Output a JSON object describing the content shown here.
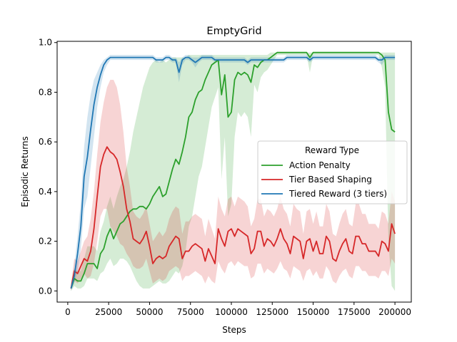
{
  "chart_data": {
    "type": "line",
    "title": "EmptyGrid",
    "xlabel": "Steps",
    "ylabel": "Episodic Returns",
    "xlim": [
      -6500,
      210000
    ],
    "ylim": [
      -0.045,
      1.005
    ],
    "xticks": [
      0,
      25000,
      50000,
      75000,
      100000,
      125000,
      150000,
      175000,
      200000
    ],
    "xtick_labels": [
      "0",
      "25000",
      "50000",
      "75000",
      "100000",
      "125000",
      "150000",
      "175000",
      "200000"
    ],
    "yticks": [
      0.0,
      0.2,
      0.4,
      0.6,
      0.8,
      1.0
    ],
    "ytick_labels": [
      "0.0",
      "0.2",
      "0.4",
      "0.6",
      "0.8",
      "1.0"
    ],
    "grid": false,
    "legend": {
      "title": "Reward Type",
      "placement": "center-right",
      "entries": [
        "Action Penalty",
        "Tier Based Shaping",
        "Tiered Reward (3 tiers)"
      ]
    },
    "x": [
      2000,
      4000,
      6000,
      8000,
      10000,
      12000,
      14000,
      16000,
      18000,
      20000,
      22000,
      24000,
      26000,
      28000,
      30000,
      32000,
      34000,
      36000,
      38000,
      40000,
      42000,
      44000,
      46000,
      48000,
      50000,
      52000,
      54000,
      56000,
      58000,
      60000,
      62000,
      64000,
      66000,
      68000,
      70000,
      72000,
      74000,
      76000,
      78000,
      80000,
      82000,
      84000,
      86000,
      88000,
      90000,
      92000,
      94000,
      96000,
      98000,
      100000,
      102000,
      104000,
      106000,
      108000,
      110000,
      112000,
      114000,
      116000,
      118000,
      120000,
      122000,
      124000,
      126000,
      128000,
      130000,
      132000,
      134000,
      136000,
      138000,
      140000,
      142000,
      144000,
      146000,
      148000,
      150000,
      152000,
      154000,
      156000,
      158000,
      160000,
      162000,
      164000,
      166000,
      168000,
      170000,
      172000,
      174000,
      176000,
      178000,
      180000,
      182000,
      184000,
      186000,
      188000,
      190000,
      192000,
      194000,
      196000,
      198000,
      200000
    ],
    "series": [
      {
        "name": "Action Penalty",
        "color": "#2ca02c",
        "mean": [
          0.01,
          0.05,
          0.04,
          0.04,
          0.07,
          0.11,
          0.11,
          0.11,
          0.09,
          0.15,
          0.17,
          0.22,
          0.25,
          0.21,
          0.24,
          0.27,
          0.28,
          0.3,
          0.32,
          0.33,
          0.33,
          0.34,
          0.34,
          0.33,
          0.35,
          0.38,
          0.4,
          0.42,
          0.38,
          0.39,
          0.44,
          0.49,
          0.53,
          0.51,
          0.56,
          0.62,
          0.7,
          0.72,
          0.77,
          0.8,
          0.81,
          0.85,
          0.88,
          0.91,
          0.92,
          0.93,
          0.79,
          0.87,
          0.7,
          0.72,
          0.85,
          0.88,
          0.87,
          0.88,
          0.87,
          0.84,
          0.91,
          0.9,
          0.92,
          0.93,
          0.93,
          0.94,
          0.95,
          0.96,
          0.96,
          0.96,
          0.96,
          0.96,
          0.96,
          0.96,
          0.96,
          0.96,
          0.96,
          0.94,
          0.96,
          0.96,
          0.96,
          0.96,
          0.96,
          0.96,
          0.96,
          0.96,
          0.96,
          0.96,
          0.96,
          0.96,
          0.96,
          0.96,
          0.96,
          0.96,
          0.96,
          0.96,
          0.96,
          0.96,
          0.96,
          0.95,
          0.93,
          0.72,
          0.65,
          0.64
        ],
        "upper": [
          0.03,
          0.09,
          0.08,
          0.08,
          0.13,
          0.18,
          0.18,
          0.18,
          0.16,
          0.24,
          0.28,
          0.34,
          0.38,
          0.33,
          0.38,
          0.42,
          0.45,
          0.5,
          0.56,
          0.64,
          0.7,
          0.76,
          0.82,
          0.86,
          0.9,
          0.92,
          0.93,
          0.92,
          0.93,
          0.92,
          0.93,
          0.94,
          0.94,
          0.94,
          0.94,
          0.94,
          0.95,
          0.95,
          0.95,
          0.95,
          0.95,
          0.95,
          0.95,
          0.95,
          0.95,
          0.95,
          0.95,
          0.95,
          0.95,
          0.95,
          0.95,
          0.95,
          0.95,
          0.95,
          0.95,
          0.95,
          0.95,
          0.95,
          0.95,
          0.95,
          0.95,
          0.96,
          0.96,
          0.96,
          0.96,
          0.96,
          0.96,
          0.96,
          0.96,
          0.96,
          0.96,
          0.96,
          0.96,
          0.96,
          0.96,
          0.96,
          0.96,
          0.96,
          0.96,
          0.96,
          0.96,
          0.96,
          0.96,
          0.96,
          0.96,
          0.96,
          0.96,
          0.96,
          0.96,
          0.96,
          0.96,
          0.96,
          0.96,
          0.96,
          0.96,
          0.96,
          0.96,
          0.96,
          0.96,
          0.96
        ],
        "lower": [
          0.0,
          0.02,
          0.01,
          0.01,
          0.02,
          0.05,
          0.05,
          0.05,
          0.04,
          0.07,
          0.08,
          0.11,
          0.13,
          0.1,
          0.11,
          0.13,
          0.13,
          0.12,
          0.1,
          0.07,
          0.04,
          0.02,
          0.01,
          0.01,
          0.01,
          0.02,
          0.03,
          0.04,
          0.03,
          0.03,
          0.04,
          0.06,
          0.08,
          0.07,
          0.1,
          0.16,
          0.26,
          0.3,
          0.38,
          0.46,
          0.5,
          0.58,
          0.66,
          0.74,
          0.78,
          0.82,
          0.45,
          0.62,
          0.3,
          0.35,
          0.62,
          0.72,
          0.7,
          0.72,
          0.7,
          0.62,
          0.83,
          0.8,
          0.86,
          0.88,
          0.89,
          0.91,
          0.93,
          0.95,
          0.95,
          0.95,
          0.95,
          0.95,
          0.95,
          0.95,
          0.95,
          0.95,
          0.95,
          0.88,
          0.95,
          0.95,
          0.95,
          0.95,
          0.95,
          0.95,
          0.95,
          0.95,
          0.95,
          0.95,
          0.95,
          0.95,
          0.95,
          0.95,
          0.95,
          0.95,
          0.95,
          0.95,
          0.95,
          0.95,
          0.95,
          0.9,
          0.82,
          0.2,
          0.02,
          0.0
        ]
      },
      {
        "name": "Tier Based Shaping",
        "color": "#d62728",
        "mean": [
          0.01,
          0.08,
          0.07,
          0.1,
          0.13,
          0.12,
          0.16,
          0.25,
          0.38,
          0.5,
          0.55,
          0.58,
          0.56,
          0.55,
          0.53,
          0.48,
          0.42,
          0.33,
          0.28,
          0.21,
          0.2,
          0.19,
          0.21,
          0.24,
          0.18,
          0.11,
          0.13,
          0.14,
          0.13,
          0.14,
          0.18,
          0.2,
          0.22,
          0.21,
          0.13,
          0.16,
          0.16,
          0.18,
          0.19,
          0.18,
          0.17,
          0.12,
          0.17,
          0.14,
          0.11,
          0.25,
          0.21,
          0.18,
          0.24,
          0.25,
          0.22,
          0.25,
          0.24,
          0.23,
          0.22,
          0.15,
          0.17,
          0.24,
          0.24,
          0.18,
          0.21,
          0.2,
          0.18,
          0.21,
          0.25,
          0.21,
          0.19,
          0.15,
          0.22,
          0.21,
          0.2,
          0.13,
          0.2,
          0.21,
          0.16,
          0.2,
          0.15,
          0.15,
          0.22,
          0.2,
          0.13,
          0.12,
          0.16,
          0.19,
          0.21,
          0.16,
          0.15,
          0.22,
          0.22,
          0.19,
          0.19,
          0.16,
          0.16,
          0.16,
          0.14,
          0.2,
          0.19,
          0.16,
          0.27,
          0.23
        ],
        "upper": [
          0.03,
          0.13,
          0.12,
          0.16,
          0.2,
          0.22,
          0.29,
          0.4,
          0.55,
          0.68,
          0.76,
          0.82,
          0.85,
          0.85,
          0.82,
          0.75,
          0.64,
          0.5,
          0.42,
          0.32,
          0.3,
          0.29,
          0.31,
          0.34,
          0.27,
          0.2,
          0.22,
          0.24,
          0.22,
          0.24,
          0.29,
          0.32,
          0.34,
          0.33,
          0.23,
          0.28,
          0.28,
          0.3,
          0.31,
          0.3,
          0.29,
          0.22,
          0.29,
          0.25,
          0.21,
          0.38,
          0.33,
          0.3,
          0.37,
          0.38,
          0.34,
          0.38,
          0.37,
          0.36,
          0.34,
          0.26,
          0.29,
          0.37,
          0.37,
          0.3,
          0.33,
          0.32,
          0.3,
          0.33,
          0.38,
          0.33,
          0.31,
          0.26,
          0.35,
          0.33,
          0.32,
          0.23,
          0.32,
          0.33,
          0.27,
          0.32,
          0.26,
          0.26,
          0.35,
          0.32,
          0.23,
          0.22,
          0.27,
          0.31,
          0.33,
          0.27,
          0.26,
          0.35,
          0.35,
          0.31,
          0.31,
          0.27,
          0.27,
          0.27,
          0.25,
          0.32,
          0.31,
          0.27,
          0.4,
          0.36
        ],
        "lower": [
          0.0,
          0.04,
          0.03,
          0.05,
          0.07,
          0.05,
          0.06,
          0.11,
          0.2,
          0.3,
          0.33,
          0.33,
          0.26,
          0.24,
          0.22,
          0.19,
          0.18,
          0.15,
          0.13,
          0.1,
          0.09,
          0.09,
          0.1,
          0.13,
          0.08,
          0.03,
          0.04,
          0.05,
          0.04,
          0.05,
          0.08,
          0.09,
          0.1,
          0.09,
          0.04,
          0.06,
          0.06,
          0.07,
          0.08,
          0.07,
          0.06,
          0.03,
          0.06,
          0.04,
          0.03,
          0.12,
          0.09,
          0.07,
          0.11,
          0.12,
          0.1,
          0.12,
          0.11,
          0.1,
          0.1,
          0.05,
          0.06,
          0.11,
          0.11,
          0.07,
          0.09,
          0.08,
          0.07,
          0.09,
          0.12,
          0.09,
          0.08,
          0.05,
          0.1,
          0.09,
          0.08,
          0.04,
          0.08,
          0.09,
          0.06,
          0.08,
          0.05,
          0.05,
          0.1,
          0.08,
          0.04,
          0.03,
          0.06,
          0.08,
          0.09,
          0.06,
          0.05,
          0.1,
          0.1,
          0.08,
          0.08,
          0.06,
          0.06,
          0.06,
          0.05,
          0.08,
          0.08,
          0.06,
          0.13,
          0.11
        ]
      },
      {
        "name": "Tiered Reward (3 tiers)",
        "color": "#1f77b4",
        "mean": [
          0.01,
          0.06,
          0.15,
          0.26,
          0.46,
          0.54,
          0.65,
          0.75,
          0.82,
          0.87,
          0.91,
          0.93,
          0.94,
          0.94,
          0.94,
          0.94,
          0.94,
          0.94,
          0.94,
          0.94,
          0.94,
          0.94,
          0.94,
          0.94,
          0.94,
          0.94,
          0.93,
          0.93,
          0.93,
          0.94,
          0.94,
          0.93,
          0.93,
          0.88,
          0.93,
          0.94,
          0.94,
          0.93,
          0.92,
          0.93,
          0.94,
          0.94,
          0.94,
          0.94,
          0.93,
          0.93,
          0.93,
          0.93,
          0.93,
          0.93,
          0.93,
          0.93,
          0.93,
          0.93,
          0.92,
          0.93,
          0.93,
          0.93,
          0.93,
          0.93,
          0.93,
          0.93,
          0.93,
          0.93,
          0.93,
          0.93,
          0.94,
          0.94,
          0.94,
          0.94,
          0.94,
          0.94,
          0.94,
          0.93,
          0.94,
          0.94,
          0.94,
          0.94,
          0.94,
          0.94,
          0.94,
          0.94,
          0.94,
          0.94,
          0.94,
          0.94,
          0.94,
          0.94,
          0.94,
          0.94,
          0.94,
          0.94,
          0.94,
          0.94,
          0.93,
          0.93,
          0.94,
          0.94,
          0.94,
          0.94
        ],
        "upper": [
          0.02,
          0.1,
          0.22,
          0.36,
          0.58,
          0.7,
          0.79,
          0.85,
          0.88,
          0.91,
          0.93,
          0.94,
          0.95,
          0.95,
          0.95,
          0.95,
          0.95,
          0.95,
          0.95,
          0.95,
          0.95,
          0.95,
          0.95,
          0.95,
          0.95,
          0.95,
          0.94,
          0.94,
          0.94,
          0.95,
          0.95,
          0.94,
          0.94,
          0.92,
          0.94,
          0.95,
          0.95,
          0.94,
          0.94,
          0.94,
          0.95,
          0.95,
          0.95,
          0.95,
          0.94,
          0.94,
          0.94,
          0.94,
          0.94,
          0.94,
          0.94,
          0.94,
          0.94,
          0.94,
          0.93,
          0.94,
          0.94,
          0.94,
          0.94,
          0.94,
          0.94,
          0.94,
          0.94,
          0.94,
          0.94,
          0.94,
          0.95,
          0.95,
          0.95,
          0.95,
          0.95,
          0.95,
          0.95,
          0.94,
          0.95,
          0.95,
          0.95,
          0.95,
          0.95,
          0.95,
          0.95,
          0.95,
          0.95,
          0.95,
          0.95,
          0.95,
          0.95,
          0.95,
          0.95,
          0.95,
          0.95,
          0.95,
          0.95,
          0.95,
          0.94,
          0.94,
          0.95,
          0.95,
          0.95,
          0.95
        ],
        "lower": [
          0.0,
          0.03,
          0.08,
          0.17,
          0.33,
          0.38,
          0.5,
          0.62,
          0.74,
          0.82,
          0.88,
          0.91,
          0.93,
          0.93,
          0.93,
          0.93,
          0.93,
          0.93,
          0.93,
          0.93,
          0.93,
          0.93,
          0.93,
          0.93,
          0.93,
          0.93,
          0.92,
          0.92,
          0.92,
          0.93,
          0.93,
          0.92,
          0.92,
          0.84,
          0.91,
          0.93,
          0.93,
          0.92,
          0.9,
          0.92,
          0.93,
          0.93,
          0.93,
          0.93,
          0.92,
          0.92,
          0.92,
          0.92,
          0.92,
          0.92,
          0.92,
          0.92,
          0.92,
          0.92,
          0.91,
          0.92,
          0.92,
          0.92,
          0.92,
          0.92,
          0.92,
          0.92,
          0.92,
          0.92,
          0.92,
          0.92,
          0.93,
          0.93,
          0.93,
          0.93,
          0.93,
          0.93,
          0.93,
          0.92,
          0.93,
          0.93,
          0.93,
          0.93,
          0.93,
          0.93,
          0.93,
          0.93,
          0.93,
          0.93,
          0.93,
          0.93,
          0.93,
          0.93,
          0.93,
          0.93,
          0.93,
          0.93,
          0.93,
          0.93,
          0.92,
          0.91,
          0.93,
          0.93,
          0.93,
          0.93
        ]
      }
    ]
  }
}
